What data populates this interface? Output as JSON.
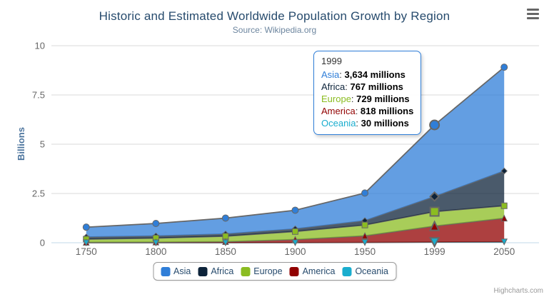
{
  "chart": {
    "title": "Historic and Estimated Worldwide Population Growth by Region",
    "subtitle": "Source: Wikipedia.org",
    "credits": "Highcharts.com"
  },
  "colors": {
    "title": "#274b6d",
    "subtitle": "#6d869f",
    "axis_labels": "#666666",
    "yaxis_title": "#4d759e",
    "grid_line": "#d8d8d8",
    "axis_line": "#c0d8e8",
    "series_line": "#666666",
    "marker_stroke": "#666666",
    "tooltip_border": "#2f7ed8",
    "legend_border": "#999999",
    "legend_text": "#274b6d",
    "credits_text": "#999999"
  },
  "chart_data": {
    "type": "area",
    "stacking": "normal",
    "title": "Historic and Estimated Worldwide Population Growth by Region",
    "subtitle": "Source: Wikipedia.org",
    "categories": [
      "1750",
      "1800",
      "1850",
      "1900",
      "1950",
      "1999",
      "2050"
    ],
    "series": [
      {
        "name": "Asia",
        "color": "#2f7ed8",
        "marker": "circle",
        "values": [
          502,
          635,
          809,
          947,
          1402,
          3634,
          5268
        ]
      },
      {
        "name": "Africa",
        "color": "#0d233a",
        "marker": "diamond",
        "values": [
          106,
          107,
          111,
          133,
          221,
          767,
          1766
        ]
      },
      {
        "name": "Europe",
        "color": "#8bbc21",
        "marker": "square",
        "values": [
          163,
          203,
          276,
          408,
          547,
          729,
          628
        ]
      },
      {
        "name": "America",
        "color": "#910000",
        "marker": "triangle",
        "values": [
          18,
          31,
          54,
          156,
          339,
          818,
          1201
        ]
      },
      {
        "name": "Oceania",
        "color": "#1aadce",
        "marker": "triangle-down",
        "values": [
          2,
          2,
          2,
          6,
          13,
          30,
          46
        ]
      }
    ],
    "stack_order_bottom_to_top": [
      "Oceania",
      "America",
      "Europe",
      "Africa",
      "Asia"
    ],
    "values_unit": "millions",
    "xlabel": "",
    "ylabel": "Billions",
    "ylim": [
      0,
      10
    ],
    "yticks": [
      0,
      2.5,
      5,
      7.5,
      10
    ],
    "ytick_labels": [
      "0",
      "2.5",
      "5",
      "7.5",
      "10"
    ],
    "grid": true,
    "legend_position": "bottom",
    "hover_index": 5,
    "area_fill_opacity": 0.75
  },
  "yaxis": {
    "title": "Billions"
  },
  "tooltip": {
    "header": "1999",
    "separator": ": ",
    "rows": [
      {
        "name": "Asia",
        "color": "#2f7ed8",
        "value": "3,634 millions"
      },
      {
        "name": "Africa",
        "color": "#0d233a",
        "value": "767 millions"
      },
      {
        "name": "Europe",
        "color": "#8bbc21",
        "value": "729 millions"
      },
      {
        "name": "America",
        "color": "#910000",
        "value": "818 millions"
      },
      {
        "name": "Oceania",
        "color": "#1aadce",
        "value": "30 millions"
      }
    ]
  },
  "legend": {
    "items": [
      {
        "label": "Asia",
        "color": "#2f7ed8"
      },
      {
        "label": "Africa",
        "color": "#0d233a"
      },
      {
        "label": "Europe",
        "color": "#8bbc21"
      },
      {
        "label": "America",
        "color": "#910000"
      },
      {
        "label": "Oceania",
        "color": "#1aadce"
      }
    ]
  }
}
